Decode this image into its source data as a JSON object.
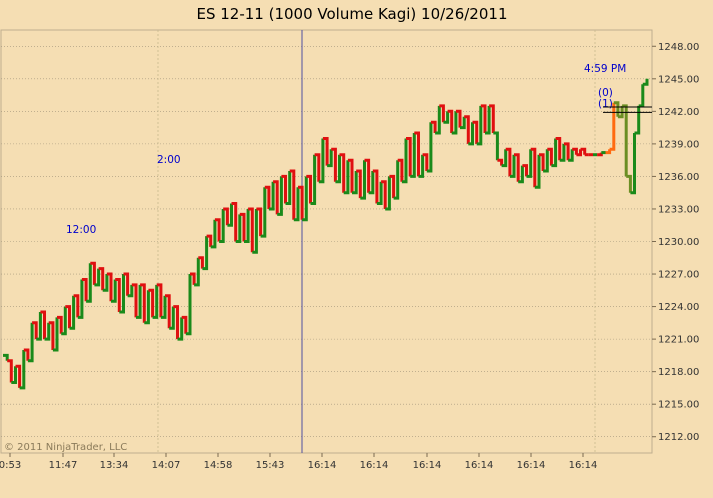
{
  "chart_data": {
    "type": "line",
    "title": "ES 12-11 (1000 Volume Kagi)  10/26/2011",
    "copyright": "© 2011 NinjaTrader, LLC",
    "ylim": [
      1210.5,
      1249.5
    ],
    "y_ticks": [
      "1248.00",
      "1245.00",
      "1242.00",
      "1239.00",
      "1236.00",
      "1233.00",
      "1230.00",
      "1227.00",
      "1224.00",
      "1221.00",
      "1218.00",
      "1215.00",
      "1212.00"
    ],
    "x_ticks": [
      "0:53",
      "11:47",
      "13:34",
      "14:07",
      "14:58",
      "15:43",
      "16:14",
      "16:14",
      "16:14",
      "16:14",
      "16:14",
      "16:14"
    ],
    "grid": true,
    "colors": {
      "up": "#1a8a1a",
      "down": "#e01010",
      "late_up": "#6b8e23",
      "late_down": "#ff6a10",
      "annotation": "#0000cc",
      "background": "#f5deb3"
    },
    "annotations": [
      "12:00",
      "2:00",
      "4:59 PM",
      "(0)",
      "(1)"
    ],
    "series": [
      {
        "values": [
          1219.5,
          1219.0,
          1217.0,
          1218.5,
          1216.5,
          1220.0,
          1219.0,
          1222.5,
          1221.0,
          1223.5,
          1221.0,
          1222.5,
          1220.0,
          1223.0,
          1221.5,
          1224.0,
          1222.0,
          1225.0,
          1223.0,
          1226.5,
          1224.5,
          1228.0,
          1226.0,
          1227.5,
          1225.5,
          1227.0,
          1224.5,
          1226.5,
          1223.5,
          1227.0,
          1225.0,
          1226.0,
          1223.0,
          1226.0,
          1222.5,
          1225.5,
          1223.0,
          1226.0,
          1223.0,
          1225.0,
          1222.0,
          1224.0,
          1221.0,
          1223.0,
          1221.5,
          1227.0,
          1226.0,
          1228.5,
          1227.5,
          1230.5,
          1229.5,
          1232.0,
          1230.0,
          1233.0,
          1231.5,
          1233.5,
          1230.0,
          1232.5,
          1230.0,
          1233.0,
          1229.0,
          1233.0,
          1230.5,
          1235.0,
          1233.0,
          1235.5,
          1232.5,
          1236.0,
          1233.5,
          1236.5,
          1232.0,
          1235.0,
          1232.0,
          1236.0,
          1233.5,
          1238.0,
          1235.5,
          1239.5,
          1237.0,
          1238.5,
          1235.5,
          1238.0,
          1234.5,
          1237.5,
          1234.5,
          1236.5,
          1234.0,
          1237.5,
          1234.5,
          1236.5,
          1233.5,
          1235.5,
          1233.0,
          1236.0,
          1234.0,
          1237.5,
          1235.5,
          1239.5,
          1236.0,
          1240.0,
          1236.0,
          1238.0,
          1236.5,
          1241.0,
          1240.0,
          1242.5,
          1241.0,
          1242.0,
          1240.0,
          1242.0,
          1240.5,
          1241.5,
          1239.0,
          1241.0,
          1239.0,
          1242.5,
          1240.0,
          1242.5,
          1240.0,
          1237.5,
          1237.0,
          1238.5,
          1236.0,
          1238.0,
          1235.5,
          1237.0,
          1236.0,
          1238.5,
          1235.0,
          1238.0,
          1236.5,
          1238.5,
          1237.0,
          1239.5,
          1237.5,
          1239.0,
          1237.5,
          1238.5,
          1238.0,
          1238.5,
          1238.0,
          1238.0,
          1238.0,
          1238.0,
          1238.2,
          1238.2,
          1238.5,
          1242.8,
          1241.5,
          1242.5,
          1236.0,
          1234.5,
          1240.0,
          1242.5,
          1244.5,
          1245.0
        ],
        "colors": [
          "up",
          "up",
          "down",
          "up",
          "down",
          "up",
          "down",
          "up",
          "down",
          "up",
          "down",
          "up",
          "down",
          "up",
          "down",
          "up",
          "down",
          "up",
          "down",
          "up",
          "down",
          "up",
          "down",
          "up",
          "down",
          "up",
          "down",
          "up",
          "down",
          "up",
          "down",
          "up",
          "down",
          "up",
          "down",
          "up",
          "down",
          "up",
          "down",
          "up",
          "down",
          "up",
          "down",
          "up",
          "down",
          "up",
          "down",
          "up",
          "down",
          "up",
          "down",
          "up",
          "down",
          "up",
          "down",
          "up",
          "down",
          "up",
          "down",
          "up",
          "down",
          "up",
          "down",
          "up",
          "down",
          "up",
          "down",
          "up",
          "down",
          "up",
          "down",
          "up",
          "down",
          "up",
          "down",
          "up",
          "down",
          "up",
          "down",
          "up",
          "down",
          "up",
          "down",
          "up",
          "down",
          "up",
          "down",
          "up",
          "down",
          "up",
          "down",
          "up",
          "down",
          "up",
          "down",
          "up",
          "down",
          "up",
          "down",
          "up",
          "down",
          "up",
          "down",
          "up",
          "down",
          "up",
          "down",
          "up",
          "down",
          "up",
          "down",
          "up",
          "down",
          "up",
          "down",
          "up",
          "down",
          "up",
          "down",
          "up",
          "down",
          "up",
          "down",
          "up",
          "down",
          "up",
          "down",
          "up",
          "down",
          "up",
          "down",
          "up",
          "down",
          "up",
          "down",
          "up",
          "down",
          "up",
          "down",
          "down",
          "down",
          "down",
          "down",
          "up",
          "down",
          "up",
          "late_down",
          "late_down",
          "late_up",
          "late_up",
          "late_up",
          "late_up"
        ]
      }
    ]
  }
}
